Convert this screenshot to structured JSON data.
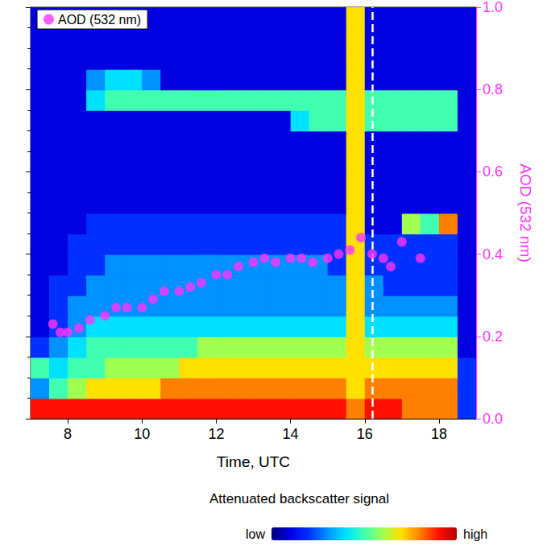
{
  "chart_data": {
    "type": "scatter",
    "x_label": "Time, UTC",
    "y_label": "AOD (532 nm)",
    "legend": "upper left",
    "xlim": [
      7,
      19
    ],
    "xticks": [
      8,
      10,
      12,
      14,
      16,
      18
    ],
    "ylim": [
      0,
      1
    ],
    "yticks": [
      {
        "value": 0,
        "label": "0.0"
      },
      0.2,
      0.4,
      0.6,
      0.8,
      {
        "value": 1,
        "label": "1.0"
      }
    ],
    "series": [
      {
        "name": "AOD (532 nm)",
        "color": "#ff33ff",
        "marker": "circle",
        "x": [
          7.6,
          7.8,
          8.0,
          8.3,
          8.6,
          9.0,
          9.3,
          9.6,
          10.0,
          10.3,
          10.6,
          11.0,
          11.3,
          11.6,
          12.0,
          12.3,
          12.6,
          13.0,
          13.3,
          13.6,
          14.0,
          14.3,
          14.6,
          15.0,
          15.3,
          15.6,
          15.9,
          16.2,
          16.5,
          16.7,
          17.0,
          17.5
        ],
        "values": [
          0.23,
          0.21,
          0.21,
          0.22,
          0.24,
          0.25,
          0.27,
          0.27,
          0.27,
          0.29,
          0.31,
          0.31,
          0.32,
          0.33,
          0.35,
          0.35,
          0.37,
          0.38,
          0.39,
          0.38,
          0.39,
          0.39,
          0.38,
          0.39,
          0.4,
          0.41,
          0.44,
          0.4,
          0.39,
          0.37,
          0.43,
          0.39
        ]
      }
    ],
    "vline": 16.2,
    "heatmap": {
      "x": [
        7.25,
        7.75,
        8.25,
        8.75,
        9.25,
        9.75,
        10.25,
        10.75,
        11.25,
        11.75,
        12.25,
        12.75,
        13.25,
        13.75,
        14.25,
        14.75,
        15.25,
        15.75,
        16.25,
        16.75,
        17.25,
        17.75,
        18.25,
        18.75
      ],
      "y": [
        0.025,
        0.075,
        0.125,
        0.175,
        0.225,
        0.275,
        0.325,
        0.375,
        0.425,
        0.475,
        0.525,
        0.575,
        0.625,
        0.675,
        0.725,
        0.775,
        0.825,
        0.875,
        0.925,
        0.975
      ],
      "values": [
        [
          9,
          9,
          9,
          9,
          9,
          9,
          9,
          9,
          9,
          9,
          9,
          9,
          9,
          9,
          9,
          9,
          9,
          8,
          9,
          9,
          8,
          8,
          8,
          2
        ],
        [
          3,
          5,
          6,
          7,
          7,
          7,
          7,
          8,
          8,
          8,
          8,
          8,
          8,
          8,
          8,
          8,
          8,
          7,
          8,
          8,
          8,
          8,
          8,
          2
        ],
        [
          5,
          4,
          5,
          5,
          6,
          6,
          6,
          6,
          7,
          7,
          7,
          7,
          7,
          7,
          7,
          7,
          7,
          7,
          7,
          7,
          7,
          7,
          7,
          2
        ],
        [
          2,
          3,
          4,
          5,
          5,
          5,
          5,
          5,
          5,
          6,
          6,
          6,
          6,
          6,
          6,
          6,
          6,
          7,
          6,
          6,
          6,
          6,
          6,
          1
        ],
        [
          1,
          2,
          3,
          4,
          4,
          4,
          4,
          4,
          4,
          4,
          4,
          4,
          4,
          4,
          4,
          4,
          4,
          7,
          4,
          4,
          4,
          4,
          4,
          1
        ],
        [
          1,
          2,
          3,
          3,
          3,
          3,
          3,
          3,
          3,
          3,
          3,
          3,
          3,
          3,
          3,
          3,
          3,
          7,
          3,
          3,
          3,
          3,
          3,
          1
        ],
        [
          1,
          2,
          2,
          3,
          3,
          3,
          3,
          3,
          3,
          3,
          3,
          3,
          3,
          3,
          3,
          3,
          3,
          7,
          3,
          2,
          2,
          2,
          2,
          1
        ],
        [
          1,
          1,
          2,
          2,
          3,
          3,
          3,
          3,
          3,
          3,
          3,
          3,
          3,
          3,
          3,
          3,
          2,
          7,
          2,
          2,
          2,
          2,
          2,
          1
        ],
        [
          1,
          1,
          2,
          2,
          2,
          2,
          2,
          2,
          2,
          2,
          2,
          2,
          2,
          2,
          2,
          2,
          2,
          7,
          2,
          2,
          2,
          2,
          2,
          1
        ],
        [
          1,
          1,
          1,
          2,
          2,
          2,
          2,
          2,
          2,
          2,
          2,
          2,
          2,
          2,
          2,
          2,
          2,
          7,
          1,
          1,
          6,
          5,
          8,
          1
        ],
        [
          1,
          1,
          1,
          1,
          1,
          1,
          1,
          1,
          1,
          1,
          1,
          1,
          1,
          1,
          1,
          1,
          1,
          7,
          1,
          1,
          1,
          1,
          1,
          1
        ],
        [
          1,
          1,
          1,
          1,
          1,
          1,
          1,
          1,
          1,
          1,
          1,
          1,
          1,
          1,
          1,
          1,
          1,
          7,
          1,
          1,
          1,
          1,
          1,
          1
        ],
        [
          1,
          1,
          1,
          1,
          1,
          1,
          1,
          1,
          1,
          1,
          1,
          1,
          1,
          1,
          1,
          1,
          1,
          7,
          1,
          1,
          1,
          1,
          1,
          1
        ],
        [
          1,
          1,
          1,
          1,
          1,
          1,
          1,
          1,
          1,
          1,
          1,
          1,
          1,
          1,
          1,
          1,
          1,
          7,
          1,
          1,
          1,
          1,
          1,
          1
        ],
        [
          1,
          1,
          1,
          1,
          1,
          1,
          1,
          1,
          1,
          1,
          1,
          1,
          1,
          1,
          4,
          5,
          5,
          7,
          5,
          5,
          5,
          5,
          5,
          1
        ],
        [
          1,
          1,
          1,
          4,
          5,
          5,
          5,
          5,
          5,
          5,
          5,
          5,
          5,
          5,
          5,
          5,
          5,
          7,
          5,
          5,
          5,
          5,
          5,
          1
        ],
        [
          1,
          1,
          1,
          3,
          4,
          4,
          3,
          1,
          1,
          1,
          1,
          1,
          1,
          1,
          1,
          1,
          1,
          7,
          1,
          1,
          1,
          1,
          1,
          1
        ],
        [
          1,
          1,
          1,
          1,
          1,
          1,
          1,
          1,
          1,
          1,
          1,
          1,
          1,
          1,
          1,
          1,
          1,
          7,
          1,
          1,
          1,
          1,
          1,
          1
        ],
        [
          1,
          1,
          1,
          1,
          1,
          1,
          1,
          1,
          1,
          1,
          1,
          1,
          1,
          1,
          1,
          1,
          1,
          7,
          1,
          1,
          1,
          1,
          1,
          1
        ],
        [
          1,
          1,
          1,
          1,
          1,
          1,
          1,
          1,
          1,
          1,
          1,
          1,
          1,
          1,
          1,
          1,
          1,
          7,
          1,
          1,
          1,
          1,
          1,
          1
        ]
      ],
      "colorbar": {
        "title": "Attenuated backscatter signal",
        "range": [
          0,
          10
        ],
        "labels": [
          "low",
          "high"
        ]
      }
    }
  }
}
